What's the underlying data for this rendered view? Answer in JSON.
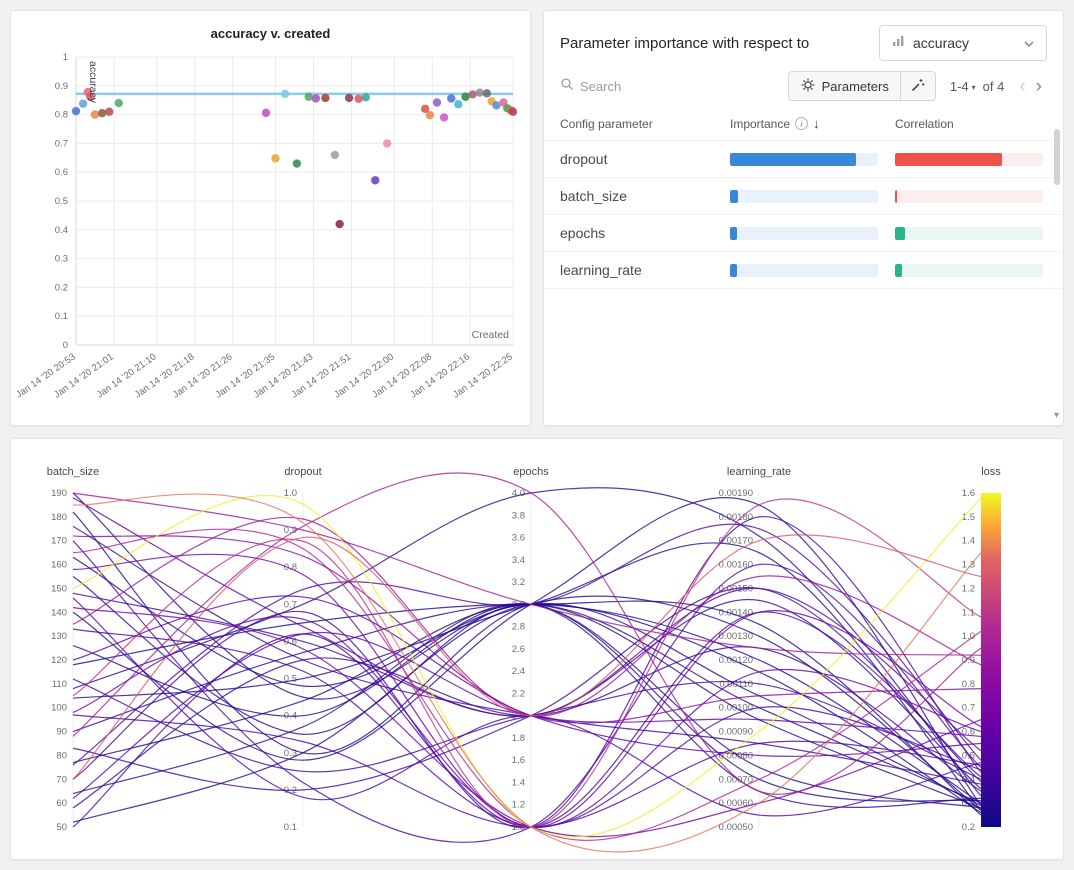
{
  "scatter_panel": {
    "title": "accuracy v. created"
  },
  "importance_panel": {
    "header_text": "Parameter importance with respect to",
    "metric": "accuracy",
    "search_placeholder": "Search",
    "parameters_label": "Parameters",
    "pagination_range": "1-4",
    "pagination_of": "of 4",
    "table": {
      "columns": [
        "Config parameter",
        "Importance",
        "Correlation"
      ],
      "rows": [
        {
          "name": "dropout",
          "importance": 0.85,
          "correlation": 0.72,
          "sign": "neg"
        },
        {
          "name": "batch_size",
          "importance": 0.055,
          "correlation": 0.015,
          "sign": "neg"
        },
        {
          "name": "epochs",
          "importance": 0.05,
          "correlation": 0.07,
          "sign": "pos"
        },
        {
          "name": "learning_rate",
          "importance": 0.045,
          "correlation": 0.05,
          "sign": "pos"
        }
      ]
    },
    "colors": {
      "importance_fill": "#3a87d9",
      "importance_track": "#e9f2fc",
      "neg_fill": "#f0524a",
      "neg_track": "#fdeded",
      "pos_fill": "#2cb58c",
      "pos_track": "#e9f7f2"
    }
  },
  "chart_data": [
    {
      "type": "scatter",
      "title": "accuracy v. created",
      "xlabel": "Created",
      "ylabel": "accuracy",
      "ylim": [
        0,
        1
      ],
      "baseline_y": 0.872,
      "baseline_color": "#7cc7e8",
      "t_max": 92,
      "x_tick_t": [
        0,
        8,
        17,
        25,
        33,
        42,
        50,
        58,
        67,
        75,
        83,
        92
      ],
      "x_tick_labels": [
        "Jan 14 '20 20:53",
        "Jan 14 '20 21:01",
        "Jan 14 '20 21:10",
        "Jan 14 '20 21:18",
        "Jan 14 '20 21:26",
        "Jan 14 '20 21:35",
        "Jan 14 '20 21:43",
        "Jan 14 '20 21:51",
        "Jan 14 '20 22:00",
        "Jan 14 '20 22:08",
        "Jan 14 '20 22:16",
        "Jan 14 '20 22:25"
      ],
      "points": [
        [
          0,
          0.812,
          "#4878cf"
        ],
        [
          1.5,
          0.838,
          "#6a9fd8"
        ],
        [
          2.5,
          0.878,
          "#e8638c"
        ],
        [
          3,
          0.862,
          "#d65f5f"
        ],
        [
          4,
          0.8,
          "#ee854a"
        ],
        [
          5.5,
          0.805,
          "#8c613c"
        ],
        [
          7,
          0.81,
          "#b5524f"
        ],
        [
          9,
          0.84,
          "#55a868"
        ],
        [
          40,
          0.806,
          "#c44fc0"
        ],
        [
          42,
          0.648,
          "#e5a832"
        ],
        [
          44,
          0.872,
          "#7ec8e8"
        ],
        [
          46.5,
          0.63,
          "#2e8b57"
        ],
        [
          49,
          0.862,
          "#55a868"
        ],
        [
          50.5,
          0.856,
          "#9b59b6"
        ],
        [
          52.5,
          0.858,
          "#a0422e"
        ],
        [
          54.5,
          0.66,
          "#9e9e9e"
        ],
        [
          55.5,
          0.42,
          "#8e2743"
        ],
        [
          57.5,
          0.858,
          "#8b3a62"
        ],
        [
          59.5,
          0.855,
          "#d65f5f"
        ],
        [
          61,
          0.86,
          "#35a79c"
        ],
        [
          63,
          0.572,
          "#6a3fc7"
        ],
        [
          65.5,
          0.7,
          "#ef8bba"
        ],
        [
          73.5,
          0.82,
          "#d9544d"
        ],
        [
          74.5,
          0.798,
          "#ee854a"
        ],
        [
          76,
          0.842,
          "#8765c9"
        ],
        [
          77.5,
          0.79,
          "#d357d3"
        ],
        [
          79,
          0.856,
          "#4878cf"
        ],
        [
          80.5,
          0.836,
          "#45b8d1"
        ],
        [
          82,
          0.862,
          "#2e8b3a"
        ],
        [
          83.5,
          0.87,
          "#b05f85"
        ],
        [
          85,
          0.876,
          "#8f8f8f"
        ],
        [
          86.5,
          0.874,
          "#6b6b6b"
        ],
        [
          87.5,
          0.846,
          "#e8a838"
        ],
        [
          88.5,
          0.832,
          "#5b8dd9"
        ],
        [
          90,
          0.842,
          "#e066a0"
        ],
        [
          90.8,
          0.822,
          "#3aa55a"
        ],
        [
          91.5,
          0.815,
          "#d96c3a"
        ],
        [
          92,
          0.81,
          "#b0435f"
        ]
      ]
    },
    {
      "type": "parallel_coordinates",
      "color_metric": "loss",
      "axes": [
        {
          "name": "batch_size",
          "min": 50,
          "max": 190,
          "step": 10,
          "decimals": 0
        },
        {
          "name": "dropout",
          "min": 0.1,
          "max": 1.0,
          "step": 0.1,
          "decimals": 1
        },
        {
          "name": "epochs",
          "min": 1.0,
          "max": 4.0,
          "step": 0.2,
          "decimals": 1
        },
        {
          "name": "learning_rate",
          "min": 0.0005,
          "max": 0.0019,
          "step": 0.0001,
          "decimals": 5
        },
        {
          "name": "loss",
          "min": 0.2,
          "max": 1.6,
          "step": 0.1,
          "decimals": 1,
          "colorbar": true
        }
      ],
      "colormap": [
        {
          "t": 0,
          "c": "#0d0887"
        },
        {
          "t": 0.15,
          "c": "#41049d"
        },
        {
          "t": 0.3,
          "c": "#6a00a8"
        },
        {
          "t": 0.45,
          "c": "#8f0da4"
        },
        {
          "t": 0.6,
          "c": "#b12a90"
        },
        {
          "t": 0.7,
          "c": "#cc4778"
        },
        {
          "t": 0.8,
          "c": "#e16462"
        },
        {
          "t": 0.9,
          "c": "#fca636"
        },
        {
          "t": 1,
          "c": "#f0f921"
        }
      ],
      "runs": [
        [
          190,
          0.45,
          3,
          0.001,
          0.3
        ],
        [
          182,
          0.3,
          3,
          0.0013,
          0.27
        ],
        [
          176,
          0.55,
          2,
          0.00085,
          0.38
        ],
        [
          170,
          0.22,
          1,
          0.0016,
          0.45
        ],
        [
          163,
          0.48,
          3,
          0.00115,
          0.26
        ],
        [
          155,
          0.35,
          3,
          0.0007,
          0.31
        ],
        [
          148,
          0.6,
          2,
          0.00145,
          0.36
        ],
        [
          140,
          0.28,
          3,
          0.00185,
          0.29
        ],
        [
          133,
          0.52,
          1,
          0.001,
          0.44
        ],
        [
          126,
          0.4,
          3,
          0.00075,
          0.28
        ],
        [
          118,
          0.65,
          3,
          0.00135,
          0.25
        ],
        [
          112,
          0.25,
          2,
          0.0011,
          0.4
        ],
        [
          104,
          0.5,
          3,
          0.00165,
          0.27
        ],
        [
          97,
          0.33,
          1,
          0.00085,
          0.46
        ],
        [
          90,
          0.57,
          3,
          0.0012,
          0.3
        ],
        [
          83,
          0.2,
          2,
          0.0015,
          0.39
        ],
        [
          77,
          0.44,
          3,
          0.00095,
          0.28
        ],
        [
          70,
          0.68,
          1,
          0.0018,
          0.43
        ],
        [
          64,
          0.37,
          3,
          0.00065,
          0.32
        ],
        [
          58,
          0.55,
          2,
          0.00125,
          0.35
        ],
        [
          52,
          0.3,
          3,
          0.00105,
          0.29
        ],
        [
          50,
          0.62,
          1,
          0.0014,
          0.41
        ],
        [
          146,
          0.18,
          2,
          0.00055,
          0.47
        ],
        [
          108,
          0.7,
          4,
          0.00172,
          0.33
        ],
        [
          158,
          0.78,
          1,
          0.0014,
          0.62
        ],
        [
          120,
          0.72,
          2,
          0.0008,
          0.55
        ],
        [
          98,
          0.66,
          1,
          0.00115,
          0.6
        ],
        [
          76,
          0.74,
          3,
          0.00175,
          0.48
        ],
        [
          62,
          0.62,
          2,
          0.00095,
          0.58
        ],
        [
          142,
          0.58,
          1,
          0.0006,
          0.65
        ],
        [
          188,
          0.64,
          2,
          0.0015,
          0.52
        ],
        [
          190,
          0.9,
          3,
          0.00125,
          0.92
        ],
        [
          165,
          0.85,
          1,
          0.0007,
          1.02
        ],
        [
          135,
          0.93,
          2,
          0.00155,
          0.88
        ],
        [
          105,
          0.87,
          1,
          0.00185,
          1.08
        ],
        [
          88,
          0.91,
          4,
          0.00065,
          0.95
        ],
        [
          172,
          0.83,
          2,
          0.00105,
          0.78
        ],
        [
          150,
          0.97,
          1,
          0.0009,
          1.58
        ],
        [
          185,
          0.92,
          1,
          0.0006,
          1.35
        ],
        [
          70,
          0.88,
          2,
          0.0017,
          1.25
        ]
      ]
    }
  ]
}
